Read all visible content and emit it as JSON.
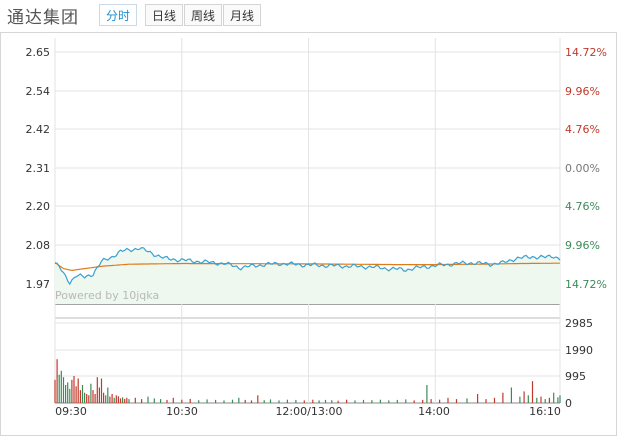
{
  "header": {
    "title": "通达集团",
    "tabs": [
      {
        "label": "分时",
        "active": true
      },
      {
        "label": "日线",
        "active": false
      },
      {
        "label": "周线",
        "active": false
      },
      {
        "label": "月线",
        "active": false
      }
    ]
  },
  "watermark": "Powered by 10jqka",
  "colors": {
    "price_line": "#3aa0d0",
    "avg_line": "#e07b1a",
    "area_fill": "#eef8ee",
    "up": "#c0392b",
    "down": "#3b8a58",
    "grid": "#e3e3e3",
    "axis_text": "#333333"
  },
  "chart_data": [
    {
      "type": "line",
      "name": "intraday-price",
      "y_ticks_left": [
        "2.65",
        "2.54",
        "2.42",
        "2.31",
        "2.20",
        "2.08",
        "1.97"
      ],
      "y_ticks_right": [
        {
          "label": "14.72%",
          "dir": "up"
        },
        {
          "label": "9.96%",
          "dir": "up"
        },
        {
          "label": "4.76%",
          "dir": "up"
        },
        {
          "label": "0.00%",
          "dir": "flat"
        },
        {
          "label": "4.76%",
          "dir": "down"
        },
        {
          "label": "9.96%",
          "dir": "down"
        },
        {
          "label": "14.72%",
          "dir": "down"
        }
      ],
      "ylim": [
        1.92,
        2.7
      ],
      "x_ticks": [
        "09:30",
        "10:30",
        "12:00/13:00",
        "14:00",
        "16:10"
      ],
      "x_points": 240,
      "price_keys": [
        [
          0,
          2.03
        ],
        [
          2,
          2.02
        ],
        [
          4,
          2.0
        ],
        [
          7,
          1.975
        ],
        [
          10,
          1.995
        ],
        [
          14,
          1.99
        ],
        [
          18,
          2.0
        ],
        [
          22,
          2.035
        ],
        [
          27,
          2.05
        ],
        [
          31,
          2.065
        ],
        [
          35,
          2.07
        ],
        [
          40,
          2.075
        ],
        [
          46,
          2.06
        ],
        [
          52,
          2.045
        ],
        [
          60,
          2.04
        ],
        [
          70,
          2.035
        ],
        [
          80,
          2.03
        ],
        [
          88,
          2.018
        ],
        [
          96,
          2.025
        ],
        [
          106,
          2.03
        ],
        [
          118,
          2.026
        ],
        [
          130,
          2.024
        ],
        [
          140,
          2.022
        ],
        [
          150,
          2.02
        ],
        [
          158,
          2.015
        ],
        [
          166,
          2.012
        ],
        [
          174,
          2.02
        ],
        [
          182,
          2.025
        ],
        [
          190,
          2.03
        ],
        [
          198,
          2.032
        ],
        [
          206,
          2.028
        ],
        [
          212,
          2.032
        ],
        [
          218,
          2.045
        ],
        [
          226,
          2.05
        ],
        [
          232,
          2.048
        ],
        [
          236,
          2.052
        ],
        [
          239,
          2.044
        ]
      ],
      "avg_keys": [
        [
          0,
          2.033
        ],
        [
          4,
          2.015
        ],
        [
          8,
          2.01
        ],
        [
          14,
          2.015
        ],
        [
          22,
          2.022
        ],
        [
          35,
          2.028
        ],
        [
          60,
          2.03
        ],
        [
          120,
          2.029
        ],
        [
          160,
          2.027
        ],
        [
          180,
          2.027
        ],
        [
          200,
          2.028
        ],
        [
          220,
          2.03
        ],
        [
          239,
          2.031
        ]
      ]
    },
    {
      "type": "bar",
      "name": "volume",
      "y_ticks": [
        "2985",
        "1990",
        "995",
        "0"
      ],
      "ylim": [
        0,
        3300
      ],
      "bars": [
        [
          0,
          900
        ],
        [
          1,
          1700
        ],
        [
          2,
          1100
        ],
        [
          3,
          1250
        ],
        [
          4,
          1000
        ],
        [
          5,
          700
        ],
        [
          6,
          800
        ],
        [
          7,
          550
        ],
        [
          8,
          900
        ],
        [
          9,
          1050
        ],
        [
          10,
          650
        ],
        [
          11,
          950
        ],
        [
          12,
          500
        ],
        [
          13,
          700
        ],
        [
          14,
          400
        ],
        [
          15,
          350
        ],
        [
          16,
          300
        ],
        [
          17,
          750
        ],
        [
          18,
          500
        ],
        [
          19,
          350
        ],
        [
          20,
          1000
        ],
        [
          21,
          600
        ],
        [
          22,
          950
        ],
        [
          23,
          400
        ],
        [
          24,
          300
        ],
        [
          25,
          600
        ],
        [
          26,
          250
        ],
        [
          27,
          350
        ],
        [
          28,
          200
        ],
        [
          29,
          300
        ],
        [
          30,
          260
        ],
        [
          31,
          180
        ],
        [
          32,
          220
        ],
        [
          33,
          160
        ],
        [
          34,
          200
        ],
        [
          35,
          150
        ],
        [
          38,
          200
        ],
        [
          41,
          150
        ],
        [
          44,
          250
        ],
        [
          47,
          180
        ],
        [
          50,
          150
        ],
        [
          53,
          120
        ],
        [
          56,
          200
        ],
        [
          60,
          130
        ],
        [
          64,
          160
        ],
        [
          68,
          110
        ],
        [
          72,
          140
        ],
        [
          76,
          120
        ],
        [
          80,
          100
        ],
        [
          84,
          130
        ],
        [
          87,
          200
        ],
        [
          90,
          120
        ],
        [
          93,
          100
        ],
        [
          96,
          300
        ],
        [
          99,
          110
        ],
        [
          102,
          140
        ],
        [
          106,
          100
        ],
        [
          110,
          130
        ],
        [
          114,
          120
        ],
        [
          118,
          100
        ],
        [
          122,
          130
        ],
        [
          125,
          100
        ],
        [
          128,
          120
        ],
        [
          131,
          110
        ],
        [
          134,
          90
        ],
        [
          138,
          130
        ],
        [
          142,
          100
        ],
        [
          146,
          120
        ],
        [
          150,
          110
        ],
        [
          154,
          130
        ],
        [
          158,
          100
        ],
        [
          162,
          120
        ],
        [
          166,
          140
        ],
        [
          170,
          100
        ],
        [
          174,
          120
        ],
        [
          176,
          700
        ],
        [
          178,
          150
        ],
        [
          182,
          130
        ],
        [
          186,
          200
        ],
        [
          190,
          150
        ],
        [
          195,
          180
        ],
        [
          200,
          350
        ],
        [
          204,
          150
        ],
        [
          208,
          200
        ],
        [
          212,
          400
        ],
        [
          216,
          600
        ],
        [
          220,
          250
        ],
        [
          222,
          450
        ],
        [
          224,
          300
        ],
        [
          226,
          850
        ],
        [
          228,
          200
        ],
        [
          230,
          250
        ],
        [
          232,
          150
        ],
        [
          234,
          200
        ],
        [
          236,
          400
        ],
        [
          238,
          220
        ],
        [
          239,
          300
        ]
      ]
    }
  ]
}
